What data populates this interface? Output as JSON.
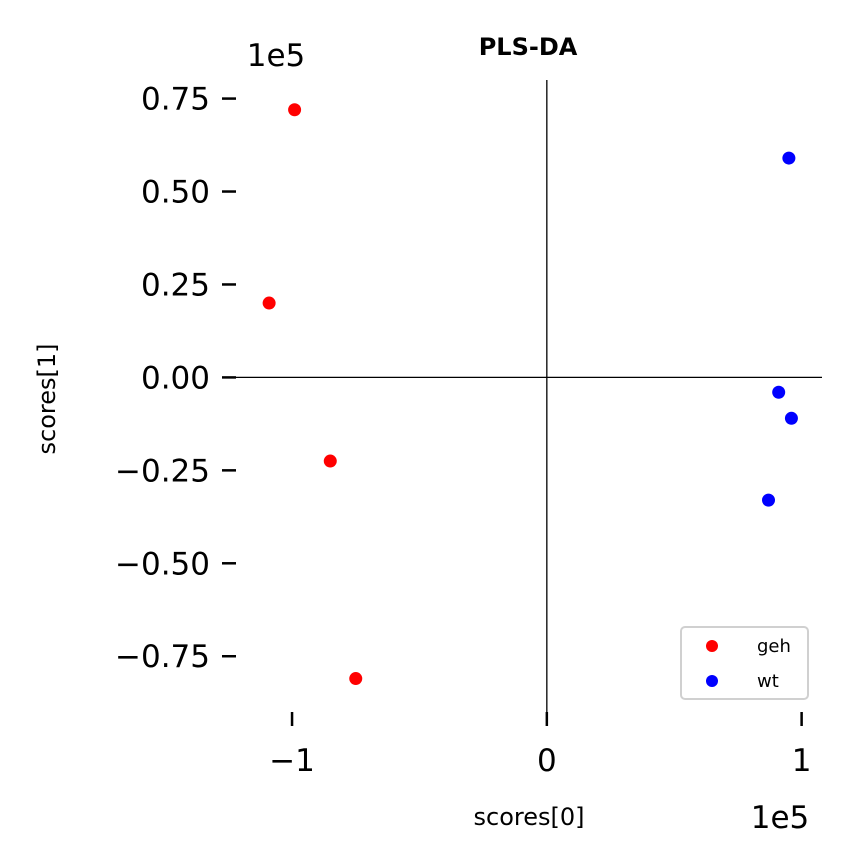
{
  "chart_data": {
    "type": "scatter",
    "title": "PLS-DA",
    "xlabel": "scores[0]",
    "ylabel": "scores[1]",
    "x_offset_text": "1e5",
    "y_offset_text": "1e5",
    "xlim": [
      -1.22,
      1.08
    ],
    "ylim": [
      -0.9,
      0.8
    ],
    "x_ticks": [
      -1,
      0,
      1
    ],
    "x_tick_labels": [
      "−1",
      "0",
      "1"
    ],
    "y_ticks": [
      0.75,
      0.5,
      0.25,
      0.0,
      -0.25,
      -0.5,
      -0.75
    ],
    "y_tick_labels": [
      "0.75",
      "0.50",
      "0.25",
      "0.00",
      "−0.25",
      "−0.50",
      "−0.75"
    ],
    "legend_position": "bottom-right",
    "series": [
      {
        "name": "geh",
        "color": "#ff0000",
        "points": [
          {
            "x": -0.99,
            "y": 0.72
          },
          {
            "x": -1.09,
            "y": 0.2
          },
          {
            "x": -0.85,
            "y": -0.225
          },
          {
            "x": -0.75,
            "y": -0.81
          }
        ]
      },
      {
        "name": "wt",
        "color": "#0000ff",
        "points": [
          {
            "x": 0.95,
            "y": 0.59
          },
          {
            "x": 0.91,
            "y": -0.04
          },
          {
            "x": 0.96,
            "y": -0.11
          },
          {
            "x": 0.87,
            "y": -0.33
          }
        ]
      }
    ]
  }
}
